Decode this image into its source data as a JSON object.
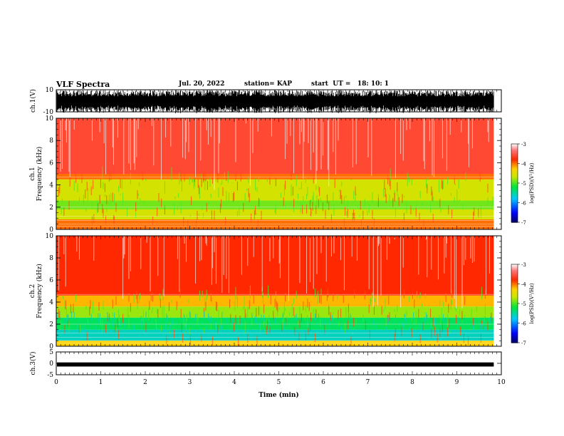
{
  "header": {
    "title": "VLF Spectra",
    "date": "Jul. 20, 2022",
    "station": "station= KAP",
    "start": "start  UT =   18: 10: 1"
  },
  "chart_data": [
    {
      "type": "line",
      "panel": "ch1-waveform",
      "ylabel": "ch.1(V)",
      "ylim": [
        -10,
        10
      ],
      "yticks": [
        "10",
        "-10"
      ],
      "xlim": [
        0,
        10
      ],
      "note_visual": "dense black saturated waveform spanning about -9 to 9 V over 0 to 9.8 min"
    },
    {
      "type": "heatmap",
      "panel": "ch1-spectrogram",
      "ylabel": "ch.1\nFrequency (kHz)",
      "ylabel_lines": [
        "ch.1",
        "Frequency (kHz)"
      ],
      "yticks": [
        "0",
        "2",
        "4",
        "6",
        "8",
        "10"
      ],
      "ylim": [
        0,
        10
      ],
      "xlim": [
        0,
        10
      ],
      "colorbar": {
        "label": "log(PSD)(V²/Hz)",
        "range": [
          -7,
          -3
        ],
        "ticks": [
          "-3",
          "-4",
          "-5",
          "-6",
          "-7"
        ]
      },
      "bands": [
        {
          "from": 0,
          "to": 0.9,
          "level": -4.0
        },
        {
          "from": 0.9,
          "to": 1.8,
          "level": -4.6
        },
        {
          "from": 1.8,
          "to": 2.6,
          "level": -4.9
        },
        {
          "from": 2.6,
          "to": 4.5,
          "level": -4.6
        },
        {
          "from": 4.5,
          "to": 5.0,
          "level": -4.0
        },
        {
          "from": 5.0,
          "to": 10,
          "level": -3.6
        }
      ]
    },
    {
      "type": "heatmap",
      "panel": "ch2-spectrogram",
      "ylabel": "ch.2\nFrequency (kHz)",
      "ylabel_lines": [
        "ch.2",
        "Frequency (kHz)"
      ],
      "yticks": [
        "0",
        "2",
        "4",
        "6",
        "8",
        "10"
      ],
      "ylim": [
        0,
        10
      ],
      "xlim": [
        0,
        10
      ],
      "colorbar": {
        "label": "log(PSD)(V²/Hz)",
        "range": [
          -7,
          -3
        ],
        "ticks": [
          "-3",
          "-4",
          "-5",
          "-6",
          "-7"
        ]
      },
      "bands": [
        {
          "from": 0,
          "to": 0.5,
          "level": -4.3
        },
        {
          "from": 0.5,
          "to": 1.5,
          "level": -5.6
        },
        {
          "from": 1.5,
          "to": 2.6,
          "level": -5.3
        },
        {
          "from": 2.6,
          "to": 3.6,
          "level": -4.8
        },
        {
          "from": 3.6,
          "to": 4.6,
          "level": -4.2
        },
        {
          "from": 4.6,
          "to": 10,
          "level": -3.8
        }
      ]
    },
    {
      "type": "line",
      "panel": "ch3-waveform",
      "ylabel": "ch.3(V)",
      "ylim": [
        -5,
        5
      ],
      "yticks": [
        "5",
        "0",
        "-5"
      ],
      "xlim": [
        0,
        10
      ],
      "xlabel": "Time (min)",
      "xticks": [
        "0",
        "1",
        "2",
        "3",
        "4",
        "5",
        "6",
        "7",
        "8",
        "9",
        "10"
      ],
      "note_visual": "narrow black band around -0.5 V over 0 to 9.8 min"
    }
  ]
}
